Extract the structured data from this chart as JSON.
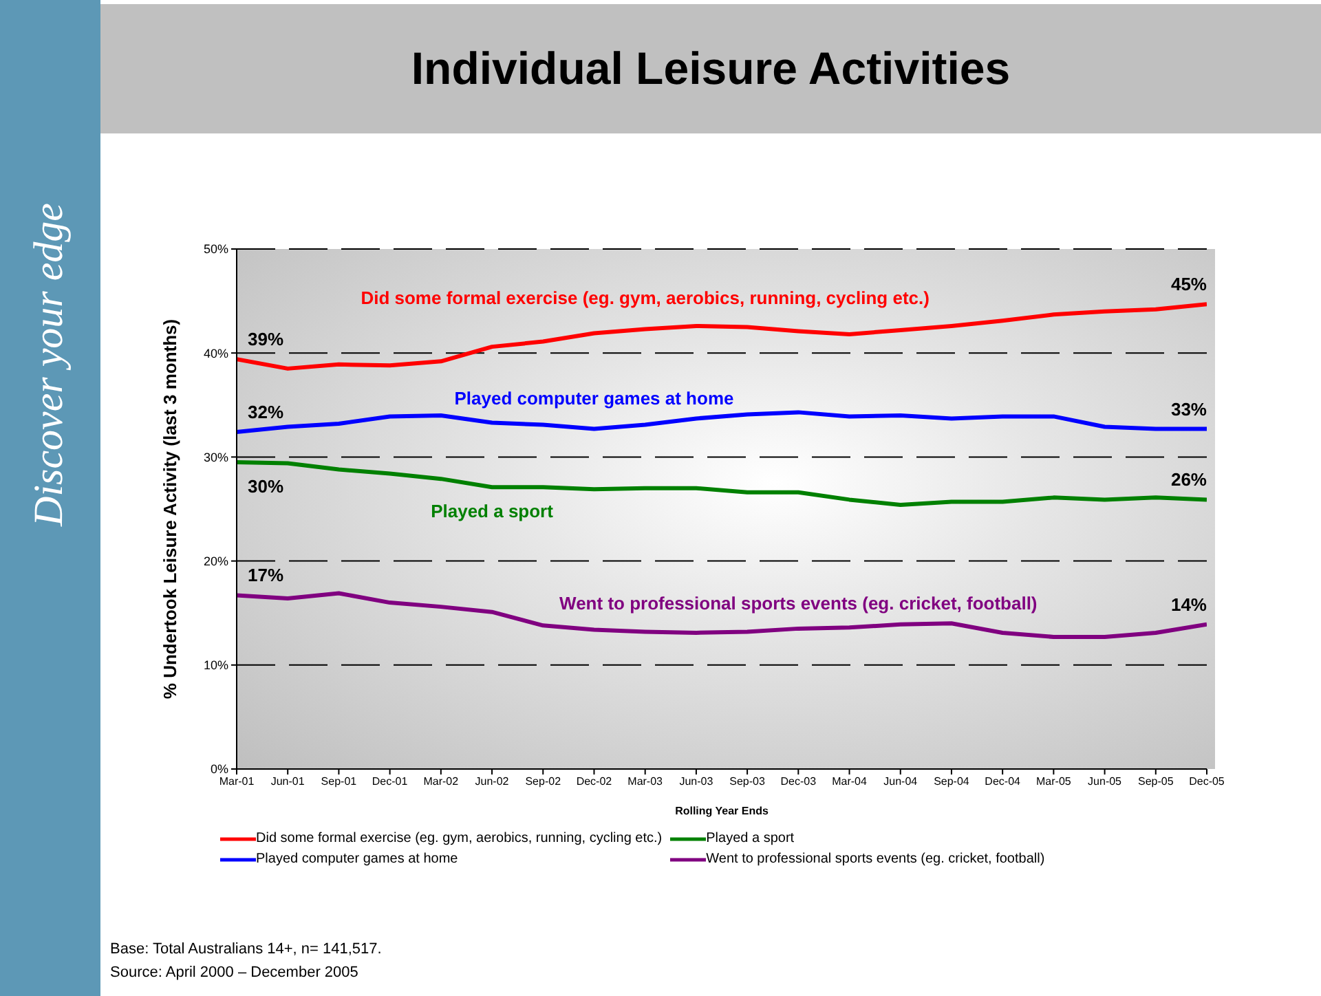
{
  "chart_data": {
    "type": "line",
    "title": "Individual Leisure Activities",
    "xlabel": "Rolling Year Ends",
    "ylabel": "% Undertook Leisure Activity (last 3 months)",
    "categories": [
      "Mar-01",
      "Jun-01",
      "Sep-01",
      "Dec-01",
      "Mar-02",
      "Jun-02",
      "Sep-02",
      "Dec-02",
      "Mar-03",
      "Jun-03",
      "Sep-03",
      "Dec-03",
      "Mar-04",
      "Jun-04",
      "Sep-04",
      "Dec-04",
      "Mar-05",
      "Jun-05",
      "Sep-05",
      "Dec-05"
    ],
    "series": [
      {
        "name": "Did some formal exercise (eg. gym, aerobics, running, cycling etc.)",
        "color": "#ff0000",
        "values": [
          39.4,
          38.5,
          38.9,
          38.8,
          39.2,
          40.6,
          41.1,
          41.9,
          42.3,
          42.6,
          42.5,
          42.1,
          41.8,
          42.2,
          42.6,
          43.1,
          43.7,
          44.0,
          44.2,
          44.7
        ]
      },
      {
        "name": "Played computer games at home",
        "color": "#0000ff",
        "values": [
          32.4,
          32.9,
          33.2,
          33.9,
          34.0,
          33.3,
          33.1,
          32.7,
          33.1,
          33.7,
          34.1,
          34.3,
          33.9,
          34.0,
          33.7,
          33.9,
          33.9,
          32.9,
          32.7,
          32.7
        ]
      },
      {
        "name": "Played a sport",
        "color": "#008000",
        "values": [
          29.5,
          29.4,
          28.8,
          28.4,
          27.9,
          27.1,
          27.1,
          26.9,
          27.0,
          27.0,
          26.6,
          26.6,
          25.9,
          25.4,
          25.7,
          25.7,
          26.1,
          25.9,
          26.1,
          25.9
        ]
      },
      {
        "name": "Went to professional sports events (eg. cricket, football)",
        "color": "#800080",
        "values": [
          16.7,
          16.4,
          16.9,
          16.0,
          15.6,
          15.1,
          13.8,
          13.4,
          13.2,
          13.1,
          13.2,
          13.5,
          13.6,
          13.9,
          14.0,
          13.1,
          12.7,
          12.7,
          13.1,
          13.9
        ]
      }
    ],
    "ylim": [
      0,
      50
    ],
    "yticks": [
      {
        "value": 0,
        "label": "0%"
      },
      {
        "value": 10,
        "label": "10%"
      },
      {
        "value": 20,
        "label": "20%"
      },
      {
        "value": 30,
        "label": "30%"
      },
      {
        "value": 40,
        "label": "40%"
      },
      {
        "value": 50,
        "label": "50%"
      }
    ],
    "grid": "y",
    "legend": "bottom",
    "line_style": "solid",
    "marker": "none",
    "annotations": [
      {
        "text": "39%",
        "x": "Mar-01",
        "y": 39.4
      },
      {
        "text": "32%",
        "x": "Mar-01",
        "y": 32.4
      },
      {
        "text": "30%",
        "x": "Mar-01",
        "y": 29.5
      },
      {
        "text": "17%",
        "x": "Mar-01",
        "y": 16.7
      },
      {
        "text": "45%",
        "x": "Dec-05",
        "y": 44.7
      },
      {
        "text": "33%",
        "x": "Dec-05",
        "y": 32.7
      },
      {
        "text": "26%",
        "x": "Dec-05",
        "y": 25.9
      },
      {
        "text": "14%",
        "x": "Dec-05",
        "y": 13.9
      },
      "Base: Total Australians 14+, n= 141,517.",
      "Source: April 2000 – December 2005",
      "Discover your edge"
    ]
  }
}
